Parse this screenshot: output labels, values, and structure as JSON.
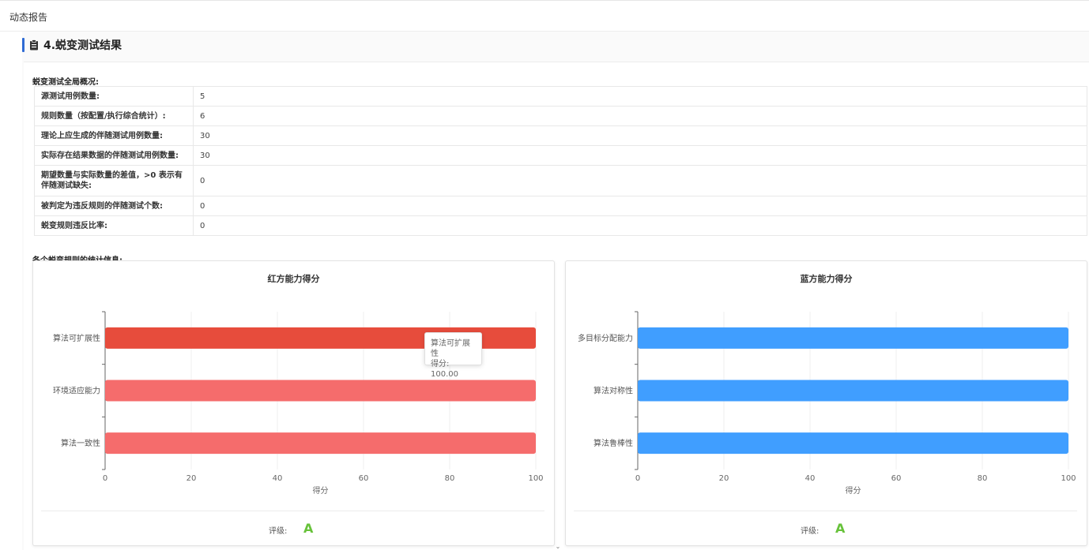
{
  "topbar": {
    "title": "动态报告"
  },
  "section": {
    "heading": "4.蜕变测试结果"
  },
  "overview": {
    "label": "蜕变测试全局概况:",
    "rows": [
      {
        "key": "源测试用例数量:",
        "value": "5"
      },
      {
        "key": "规则数量（按配置/执行综合统计）:",
        "value": "6"
      },
      {
        "key": "理论上应生成的伴随测试用例数量:",
        "value": "30"
      },
      {
        "key": "实际存在结果数据的伴随测试用例数量:",
        "value": "30"
      },
      {
        "key": "期望数量与实际数量的差值，>0 表示有伴随测试缺失:",
        "value": "0"
      },
      {
        "key": "被判定为违反规则的伴随测试个数:",
        "value": "0"
      },
      {
        "key": "蜕变规则违反比率:",
        "value": "0"
      }
    ]
  },
  "rules_label": "各个蜕变规则的统计信息:",
  "chart_data": [
    {
      "type": "bar",
      "orientation": "horizontal",
      "title": "红方能力得分",
      "xlabel": "得分",
      "categories": [
        "算法可扩展性",
        "环境适应能力",
        "算法一致性"
      ],
      "values": [
        100,
        100,
        100
      ],
      "xlim": [
        0,
        100
      ],
      "x_ticks": [
        "0",
        "20",
        "40",
        "60",
        "80",
        "100"
      ],
      "grid": true,
      "colors": [
        "#e74c3c",
        "#f56c6c",
        "#f56c6c"
      ],
      "grade_label": "评级:",
      "grade": "A",
      "tooltip": {
        "name": "算法可扩展性",
        "text": "得分: 100.00"
      }
    },
    {
      "type": "bar",
      "orientation": "horizontal",
      "title": "蓝方能力得分",
      "xlabel": "得分",
      "categories": [
        "多目标分配能力",
        "算法对称性",
        "算法鲁棒性"
      ],
      "values": [
        100,
        100,
        100
      ],
      "xlim": [
        0,
        100
      ],
      "x_ticks": [
        "0",
        "20",
        "40",
        "60",
        "80",
        "100"
      ],
      "grid": true,
      "colors": [
        "#409eff",
        "#409eff",
        "#409eff"
      ],
      "grade_label": "评级:",
      "grade": "A"
    }
  ],
  "icons": {
    "section": "document-icon",
    "scroll": "chevron-down-icon"
  },
  "scroll_glyph": "⌄"
}
